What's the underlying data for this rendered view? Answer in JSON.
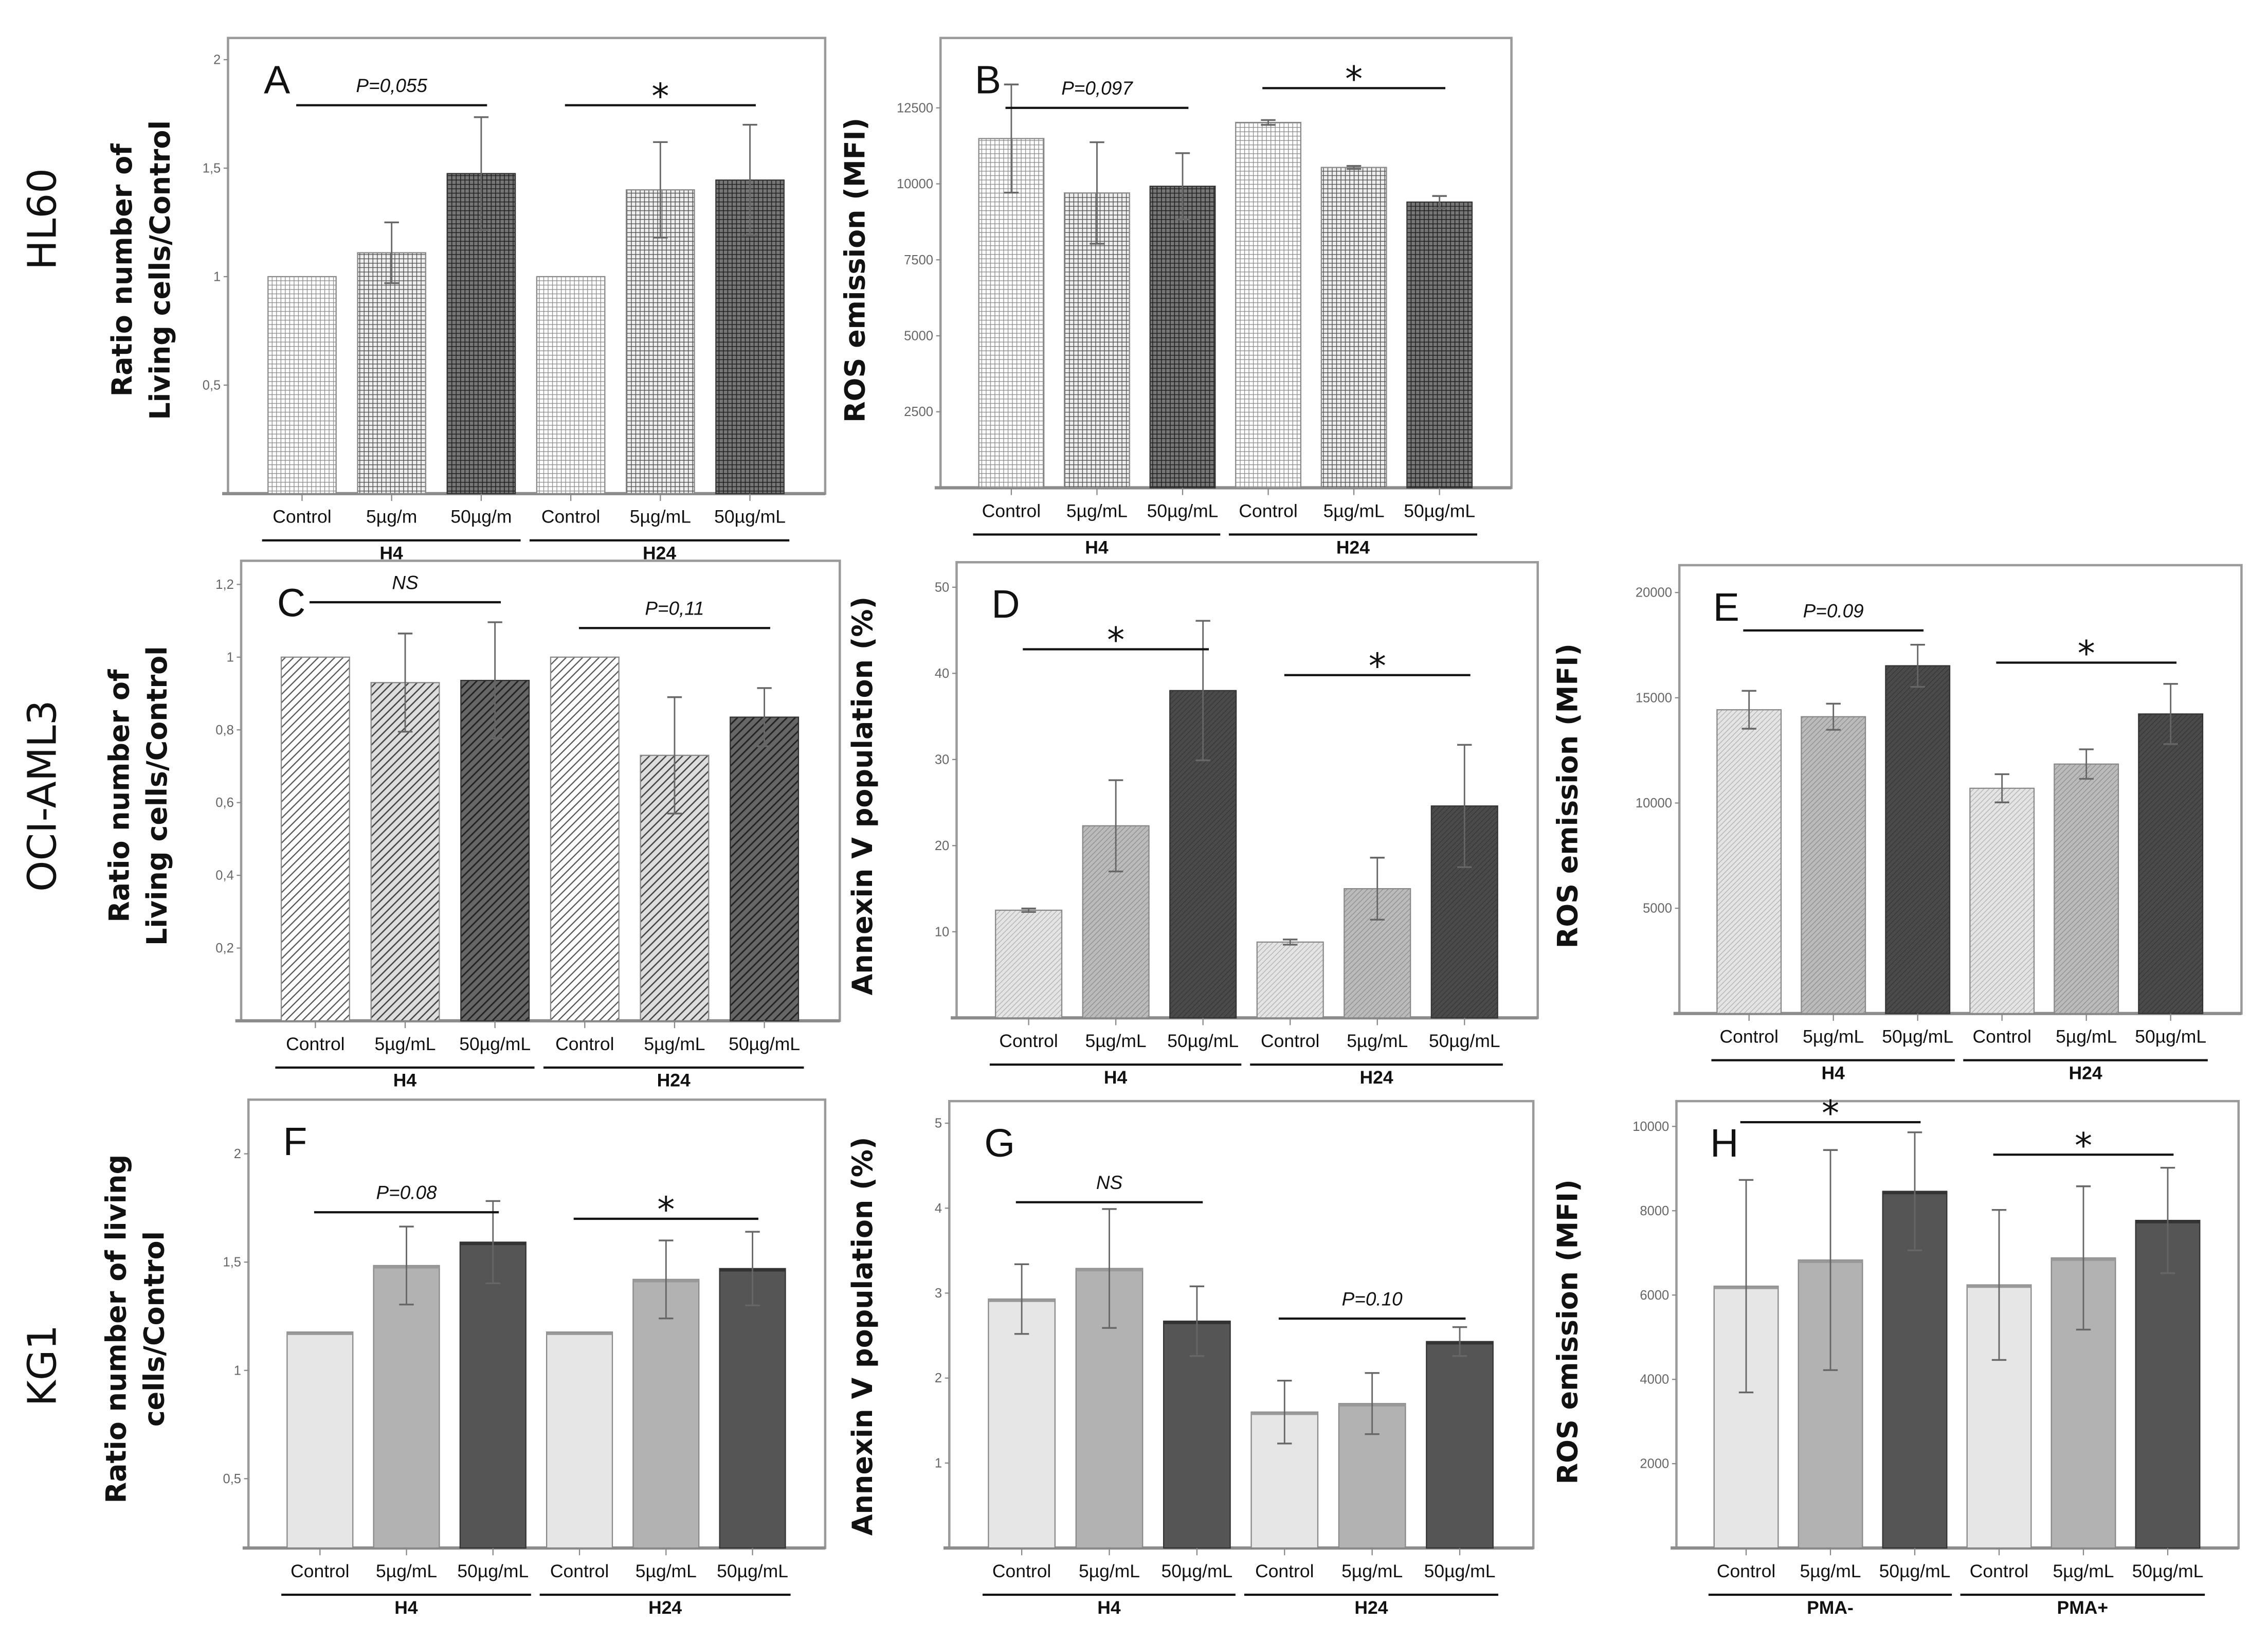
{
  "row_labels": [
    "HL60",
    "OCI-AML3",
    "KG1"
  ],
  "chart_data": [
    {
      "panel": "A",
      "type": "bar",
      "ylabel": [
        "Ratio number of",
        "Living cells/Control"
      ],
      "ylim": [
        0,
        2.1
      ],
      "yticks": [
        {
          "v": 2,
          "label": "2"
        },
        {
          "v": 1.5,
          "label": "1,5"
        },
        {
          "v": 1,
          "label": "1"
        },
        {
          "v": 0.5,
          "label": "0,5"
        }
      ],
      "categories": [
        "Control",
        "5µg/m",
        "50µg/m",
        "Control",
        "5µg/mL",
        "50µg/mL"
      ],
      "groups": [
        "H4",
        "H24"
      ],
      "values": [
        1.0,
        1.11,
        1.475,
        1.0,
        1.4,
        1.445
      ],
      "errors": [
        0,
        0.14,
        0.26,
        0,
        0.22,
        0.255
      ],
      "annotations": [
        {
          "text": "P=0,055",
          "bars": [
            0,
            2
          ],
          "y": 1.79
        },
        {
          "text": "*",
          "bars": [
            3,
            5
          ],
          "y": 1.79
        }
      ]
    },
    {
      "panel": "B",
      "type": "bar",
      "ylabel": [
        "ROS emission (MFI)"
      ],
      "ylim": [
        0,
        14800
      ],
      "yticks": [
        {
          "v": 12500,
          "label": "12500"
        },
        {
          "v": 10000,
          "label": "10000"
        },
        {
          "v": 7500,
          "label": "7500"
        },
        {
          "v": 5000,
          "label": "5000"
        },
        {
          "v": 2500,
          "label": "2500"
        }
      ],
      "categories": [
        "Control",
        "5µg/mL",
        "50µg/mL",
        "Control",
        "5µg/mL",
        "50µg/mL"
      ],
      "groups": [
        "H4",
        "H24"
      ],
      "values": [
        11490,
        9700,
        9920,
        12020,
        10540,
        9400
      ],
      "errors": [
        1780,
        1670,
        1090,
        80,
        50,
        200
      ],
      "annotations": [
        {
          "text": "P=0,097",
          "bars": [
            0,
            2
          ],
          "y": 12500
        },
        {
          "text": "*",
          "bars": [
            3,
            5
          ],
          "y": 13150
        }
      ]
    },
    {
      "panel": "C",
      "type": "bar",
      "ylabel": [
        "Ratio number of",
        "Living cells/Control"
      ],
      "ylim": [
        0,
        1.265
      ],
      "yticks": [
        {
          "v": 1.2,
          "label": "1,2"
        },
        {
          "v": 1,
          "label": "1"
        },
        {
          "v": 0.8,
          "label": "0,8"
        },
        {
          "v": 0.6,
          "label": "0,6"
        },
        {
          "v": 0.4,
          "label": "0,4"
        },
        {
          "v": 0.2,
          "label": "0,2"
        }
      ],
      "categories": [
        "Control",
        "5µg/mL",
        "50µg/mL",
        "Control",
        "5µg/mL",
        "50µg/mL"
      ],
      "groups": [
        "H4",
        "H24"
      ],
      "values": [
        1.0,
        0.93,
        0.936,
        1.0,
        0.73,
        0.835
      ],
      "errors": [
        0,
        0.135,
        0.16,
        0,
        0.16,
        0.08
      ],
      "annotations": [
        {
          "text": "NS",
          "bars": [
            0,
            2
          ],
          "y": 1.151
        },
        {
          "text": "P=0,11",
          "bars": [
            3,
            5
          ],
          "y": 1.08
        }
      ]
    },
    {
      "panel": "D",
      "type": "bar",
      "ylabel": [
        "Annexin V population (%)"
      ],
      "ylim": [
        0,
        52.9
      ],
      "yticks": [
        {
          "v": 50,
          "label": "50"
        },
        {
          "v": 40,
          "label": "40"
        },
        {
          "v": 30,
          "label": "30"
        },
        {
          "v": 20,
          "label": "20"
        },
        {
          "v": 10,
          "label": "10"
        }
      ],
      "categories": [
        "Control",
        "5µg/mL",
        "50µg/mL",
        "Control",
        "5µg/mL",
        "50µg/mL"
      ],
      "groups": [
        "H4",
        "H24"
      ],
      "values": [
        12.5,
        22.3,
        38.0,
        8.8,
        15.0,
        24.6
      ],
      "errors": [
        0.2,
        5.3,
        8.1,
        0.3,
        3.6,
        7.1
      ],
      "annotations": [
        {
          "text": "*",
          "bars": [
            0,
            2
          ],
          "y": 42.8
        },
        {
          "text": "*",
          "bars": [
            3,
            5
          ],
          "y": 39.8
        }
      ]
    },
    {
      "panel": "E",
      "type": "bar",
      "ylabel": [
        "ROS emission (MFI)"
      ],
      "ylim": [
        0,
        21300
      ],
      "yticks": [
        {
          "v": 20000,
          "label": "20000"
        },
        {
          "v": 15000,
          "label": "15000"
        },
        {
          "v": 10000,
          "label": "10000"
        },
        {
          "v": 5000,
          "label": "5000"
        }
      ],
      "categories": [
        "Control",
        "5µg/mL",
        "50µg/mL",
        "Control",
        "5µg/mL",
        "50µg/mL"
      ],
      "groups": [
        "H4",
        "H24"
      ],
      "values": [
        14430,
        14100,
        16520,
        10700,
        11850,
        14230
      ],
      "errors": [
        900,
        620,
        1000,
        670,
        700,
        1430
      ],
      "annotations": [
        {
          "text": "P=0.09",
          "bars": [
            0,
            2
          ],
          "y": 18200
        },
        {
          "text": "*",
          "bars": [
            3,
            5
          ],
          "y": 16670
        }
      ]
    },
    {
      "panel": "F",
      "type": "bar",
      "ylabel": [
        "Ratio number of living",
        "cells/Control"
      ],
      "ylim": [
        0.18,
        2.25
      ],
      "yticks": [
        {
          "v": 2,
          "label": "2"
        },
        {
          "v": 1.5,
          "label": "1,5"
        },
        {
          "v": 1,
          "label": "1"
        },
        {
          "v": 0.5,
          "label": "0,5"
        }
      ],
      "categories": [
        "Control",
        "5µg/mL",
        "50µg/mL",
        "Control",
        "5µg/mL",
        "50µg/mL"
      ],
      "groups": [
        "H4",
        "H24"
      ],
      "values": [
        1.177,
        1.484,
        1.592,
        1.177,
        1.42,
        1.47
      ],
      "errors": [
        0,
        0.18,
        0.19,
        0,
        0.18,
        0.17
      ],
      "annotations": [
        {
          "text": "P=0.08",
          "bars": [
            0,
            2
          ],
          "y": 1.73
        },
        {
          "text": "*",
          "bars": [
            3,
            5
          ],
          "y": 1.7
        }
      ]
    },
    {
      "panel": "G",
      "type": "bar",
      "ylabel": [
        "Annexin V population (%)"
      ],
      "ylim": [
        0,
        5.26
      ],
      "yticks": [
        {
          "v": 5,
          "label": "5"
        },
        {
          "v": 4,
          "label": "4"
        },
        {
          "v": 3,
          "label": "3"
        },
        {
          "v": 2,
          "label": "2"
        },
        {
          "v": 1,
          "label": "1"
        }
      ],
      "categories": [
        "Control",
        "5µg/mL",
        "50µg/mL",
        "Control",
        "5µg/mL",
        "50µg/mL"
      ],
      "groups": [
        "H4",
        "H24"
      ],
      "values": [
        2.93,
        3.29,
        2.67,
        1.6,
        1.7,
        2.43
      ],
      "errors": [
        0.41,
        0.7,
        0.41,
        0.37,
        0.36,
        0.17
      ],
      "annotations": [
        {
          "text": "NS",
          "bars": [
            0,
            2
          ],
          "y": 4.07
        },
        {
          "text": "P=0.10",
          "bars": [
            3,
            5
          ],
          "y": 2.7
        }
      ]
    },
    {
      "panel": "H",
      "type": "bar",
      "ylabel": [
        "ROS emission (MFI)"
      ],
      "ylim": [
        0,
        10600
      ],
      "yticks": [
        {
          "v": 10000,
          "label": "10000"
        },
        {
          "v": 8000,
          "label": "8000"
        },
        {
          "v": 6000,
          "label": "6000"
        },
        {
          "v": 4000,
          "label": "4000"
        },
        {
          "v": 2000,
          "label": "2000"
        }
      ],
      "categories": [
        "Control",
        "5µg/mL",
        "50µg/mL",
        "Control",
        "5µg/mL",
        "50µg/mL"
      ],
      "groups": [
        "PMA-",
        "PMA+"
      ],
      "values": [
        6210,
        6830,
        8460,
        6240,
        6880,
        7770
      ],
      "errors": [
        2520,
        2610,
        1400,
        1780,
        1700,
        1250
      ],
      "annotations": [
        {
          "text": "*",
          "bars": [
            0,
            2
          ],
          "y": 10100
        },
        {
          "text": "*",
          "bars": [
            3,
            5
          ],
          "y": 9330
        }
      ]
    }
  ]
}
